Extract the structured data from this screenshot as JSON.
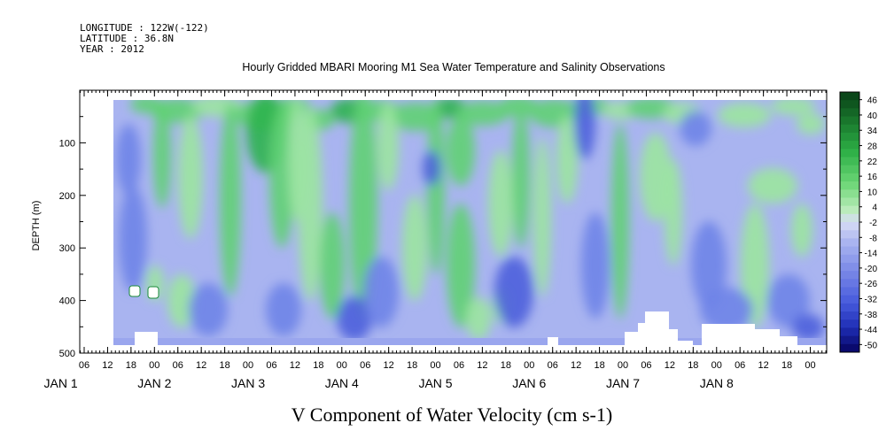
{
  "header": {
    "longitude": "LONGITUDE : 122W(-122)",
    "latitude": "LATITUDE : 36.8N",
    "year": "YEAR : 2012"
  },
  "chart_data": {
    "type": "heatmap",
    "title": "Hourly Gridded MBARI Mooring M1 Sea Water Temperature and Salinity Observations",
    "xlabel": "V Component of Water Velocity (cm s-1)",
    "ylabel": "DEPTH (m)",
    "ylim": [
      500,
      0
    ],
    "y_ticks": [
      100,
      200,
      300,
      400,
      500
    ],
    "x_hour_labels": [
      "06",
      "12",
      "18",
      "00",
      "06",
      "12",
      "18",
      "00",
      "06",
      "12",
      "18",
      "00",
      "06",
      "12",
      "18",
      "00",
      "06",
      "12",
      "18",
      "00",
      "06",
      "12",
      "18",
      "00",
      "06",
      "12",
      "18",
      "00",
      "06",
      "12",
      "18",
      "00"
    ],
    "x_day_labels": [
      "JAN 1",
      "JAN 2",
      "JAN 3",
      "JAN 4",
      "JAN 5",
      "JAN 6",
      "JAN 7",
      "JAN 8"
    ],
    "colorbar_levels": [
      46,
      40,
      34,
      28,
      22,
      16,
      10,
      4,
      -2,
      -8,
      -14,
      -20,
      -26,
      -32,
      -38,
      -44,
      -50
    ],
    "grid": false,
    "colorbar_position": "right"
  }
}
